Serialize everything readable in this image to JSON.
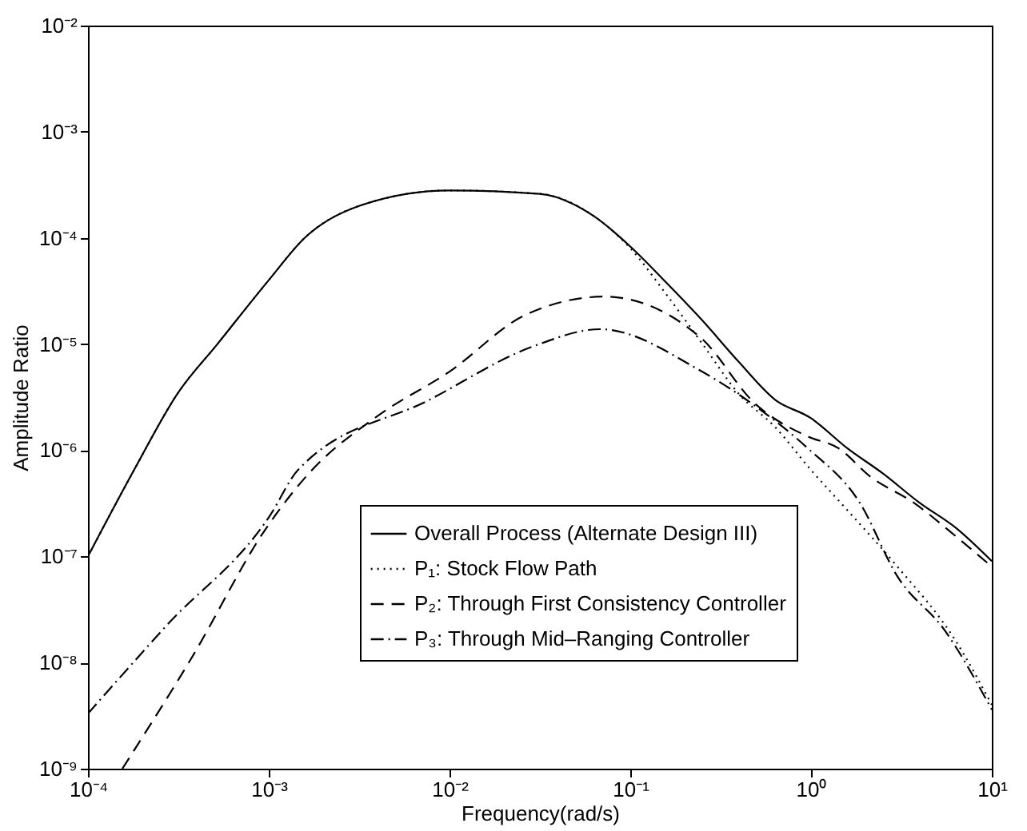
{
  "chart_data": {
    "type": "line",
    "xlabel": "Frequency(rad/s)",
    "ylabel": "Amplitude Ratio",
    "log": "xy",
    "grid": false,
    "legend": "bottom right",
    "marker": "none",
    "xlim": [
      0.0001,
      10
    ],
    "ylim": [
      1e-09,
      0.01
    ],
    "xticks": [
      {
        "value": 0.0001,
        "label": "10⁻⁴"
      },
      {
        "value": 0.001,
        "label": "10⁻³"
      },
      {
        "value": 0.01,
        "label": "10⁻²"
      },
      {
        "value": 0.1,
        "label": "10⁻¹"
      },
      {
        "value": 1,
        "label": "10⁰"
      },
      {
        "value": 10,
        "label": "10¹"
      }
    ],
    "yticks": [
      {
        "value": 1e-09,
        "label": "10⁻⁹"
      },
      {
        "value": 1e-08,
        "label": "10⁻⁸"
      },
      {
        "value": 1e-07,
        "label": "10⁻⁷"
      },
      {
        "value": 1e-06,
        "label": "10⁻⁶"
      },
      {
        "value": 1e-05,
        "label": "10⁻⁵"
      },
      {
        "value": 0.0001,
        "label": "10⁻⁴"
      },
      {
        "value": 0.001,
        "label": "10⁻³"
      },
      {
        "value": 0.01,
        "label": "10⁻²"
      }
    ],
    "series": [
      {
        "name": "Overall Process (Alternate Design III)",
        "color": "#000000",
        "line_style": "solid",
        "x": [
          0.0001,
          0.000178,
          0.000316,
          0.00052,
          0.001,
          0.00158,
          0.00316,
          0.01,
          0.0316,
          0.063,
          0.1,
          0.158,
          0.251,
          0.398,
          0.631,
          1,
          1.58,
          2.51,
          3.98,
          6.31,
          10
        ],
        "values": [
          1e-07,
          6.3e-07,
          3.5e-06,
          1e-05,
          4e-05,
          0.0001,
          0.0002,
          0.00028,
          0.00026,
          0.00016,
          8.3e-05,
          3.8e-05,
          1.66e-05,
          6.8e-06,
          3e-06,
          2e-06,
          1.05e-06,
          6e-07,
          3.2e-07,
          1.86e-07,
          9e-08
        ]
      },
      {
        "name": "P₁: Stock Flow Path",
        "color": "#000000",
        "line_style": "dotted",
        "x": [
          0.0001,
          0.000178,
          0.000316,
          0.00052,
          0.001,
          0.00158,
          0.00316,
          0.01,
          0.0316,
          0.063,
          0.1,
          0.158,
          0.251,
          0.398,
          0.631,
          1,
          1.58,
          2.95,
          6.31,
          10
        ],
        "values": [
          1e-07,
          6.3e-07,
          3.5e-06,
          1e-05,
          4e-05,
          0.0001,
          0.0002,
          0.00028,
          0.00026,
          0.00016,
          8e-05,
          2.95e-05,
          1e-05,
          3.4e-06,
          1.66e-06,
          6.5e-07,
          2.75e-07,
          8.3e-08,
          1.6e-08,
          4e-09
        ]
      },
      {
        "name": "P₂: Through First Consistency Controller",
        "color": "#000000",
        "line_style": "dashed",
        "x": [
          0.000155,
          0.00037,
          0.00098,
          0.00166,
          0.004,
          0.01,
          0.026,
          0.072,
          0.245,
          0.49,
          0.955,
          1.41,
          2.14,
          3.7,
          6.31,
          10
        ],
        "values": [
          1e-09,
          1.07e-08,
          1.9e-07,
          6e-07,
          2.1e-06,
          5.5e-06,
          1.86e-05,
          2.8e-05,
          1.15e-05,
          2.75e-06,
          1.35e-06,
          1.05e-06,
          5.6e-07,
          3.2e-07,
          1.55e-07,
          8e-08
        ]
      },
      {
        "name": "P₃: Through Mid–Ranging Controller",
        "color": "#000000",
        "line_style": "dashdot",
        "x": [
          0.0001,
          0.00027,
          0.00102,
          0.00145,
          0.0078,
          0.029,
          0.068,
          0.245,
          0.525,
          0.955,
          1.86,
          3.0,
          5.5,
          10
        ],
        "values": [
          3.3e-09,
          2.2e-08,
          2.45e-07,
          6.5e-07,
          3e-06,
          9.5e-06,
          1.38e-05,
          5.6e-06,
          2.4e-06,
          1.05e-06,
          3.2e-07,
          6.5e-08,
          2e-08,
          3.6e-09
        ]
      }
    ]
  }
}
